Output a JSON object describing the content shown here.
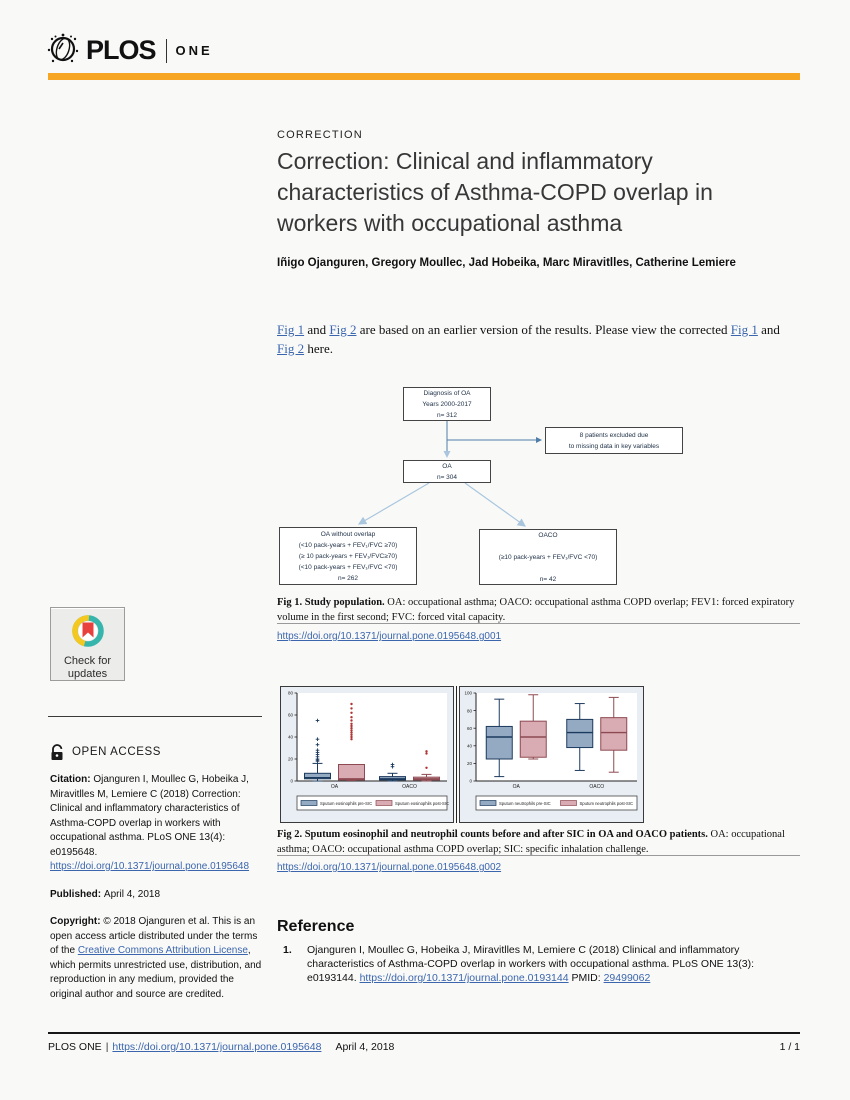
{
  "colors": {
    "accent_orange": "#F6A623",
    "link_blue": "#3b66ad"
  },
  "header": {
    "logo_plos": "PLOS",
    "logo_one": "ONE"
  },
  "article": {
    "kicker": "CORRECTION",
    "title": "Correction: Clinical and inflammatory characteristics of Asthma-COPD overlap in workers with occupational asthma",
    "authors": "Iñigo Ojanguren, Gregory Moullec, Jad Hobeika, Marc Miravitlles, Catherine Lemiere",
    "paragraph": {
      "link1": "Fig 1",
      "s2": " and ",
      "link2": "Fig 2",
      "s4": " are based on an earlier version of the results. Please view the corrected ",
      "link3": "Fig 1",
      "s6": " and ",
      "link4": "Fig 2",
      "s8": " here."
    }
  },
  "fig1": {
    "boxes": {
      "top": "Diagnosis of OA\nYears 2000-2017\nn= 312",
      "excluded": "8 patients excluded due\nto missing data in key variables",
      "oa": "OA\nn= 304",
      "left": "OA without overlap\n(<10 pack-years  + FEV₁/FVC ≥70)\n(≥ 10 pack-years  + FEV₁/FVC≥70)\n(<10 pack-years + FEV₁/FVC <70)\nn= 262",
      "right": "OACO\n\n(≥10 pack-years + FEV₁/FVC <70)\n\nn= 42"
    },
    "caption_bold": "Fig 1. Study population.",
    "caption_rest": " OA: occupational asthma; OACO: occupational asthma COPD overlap; FEV1: forced expiratory volume in the first second; FVC: forced vital capacity.",
    "doi": "https://doi.org/10.1371/journal.pone.0195648.g001"
  },
  "fig2": {
    "caption_bold": "Fig 2. Sputum eosinophil and neutrophil counts before and after SIC in OA and OACO patients.",
    "caption_rest": " OA: occupational asthma; OACO: occupational asthma COPD overlap; SIC: specific inhalation challenge.",
    "doi": "https://doi.org/10.1371/journal.pone.0195648.g002"
  },
  "chart_data": [
    {
      "type": "boxplot",
      "panel": "sputum-eosinophils",
      "categories": [
        "OA",
        "OACO"
      ],
      "ylim": [
        0,
        80
      ],
      "yticks": [
        0,
        20,
        40,
        60,
        80
      ],
      "ylabel": "%",
      "legend_position": "bottom",
      "series": [
        {
          "name": "Sputum eosinophils pre-SIC",
          "color": "#94aac2",
          "border": "#1c3a5e",
          "outlier_style": "plus",
          "boxes": [
            {
              "lo": 0,
              "q1": 2,
              "med": 3,
              "q3": 7,
              "hi": 16,
              "outliers": [
                18,
                19,
                20,
                22,
                24,
                26,
                28,
                33,
                38,
                55
              ]
            },
            {
              "lo": 0,
              "q1": 1,
              "med": 2,
              "q3": 4,
              "hi": 7,
              "outliers": [
                13,
                15
              ]
            }
          ]
        },
        {
          "name": "Sputum eosinophils post-SIC",
          "color": "#d9abb2",
          "border": "#8e4a52",
          "outlier_style": "dot",
          "boxes": [
            {
              "lo": 0.5,
              "q1": 1,
              "med": 2,
              "q3": 15,
              "hi": 15,
              "outliers": [
                38,
                40,
                42,
                44,
                46,
                48,
                50,
                52,
                55,
                58,
                62,
                66,
                70
              ]
            },
            {
              "lo": 0,
              "q1": 1,
              "med": 2,
              "q3": 3.5,
              "hi": 6,
              "outliers": [
                12,
                25,
                27
              ]
            }
          ]
        }
      ]
    },
    {
      "type": "boxplot",
      "panel": "sputum-neutrophils",
      "categories": [
        "OA",
        "OACO"
      ],
      "ylim": [
        0,
        100
      ],
      "yticks": [
        0,
        20,
        40,
        60,
        80,
        100
      ],
      "ylabel": "%",
      "legend_position": "bottom",
      "series": [
        {
          "name": "Sputum neutrophils pre-SIC",
          "color": "#94aac2",
          "border": "#1c3a5e",
          "outlier_style": "plus",
          "boxes": [
            {
              "lo": 5,
              "q1": 25,
              "med": 50,
              "q3": 62,
              "hi": 93,
              "outliers": []
            },
            {
              "lo": 12,
              "q1": 38,
              "med": 55,
              "q3": 70,
              "hi": 88,
              "outliers": []
            }
          ]
        },
        {
          "name": "Sputum neutrophils post-SIC",
          "color": "#d9abb2",
          "border": "#8e4a52",
          "outlier_style": "dot",
          "boxes": [
            {
              "lo": 25,
              "q1": 27,
              "med": 50,
              "q3": 68,
              "hi": 98,
              "outliers": []
            },
            {
              "lo": 10,
              "q1": 35,
              "med": 55,
              "q3": 72,
              "hi": 95,
              "outliers": []
            }
          ]
        }
      ]
    }
  ],
  "reference": {
    "heading": "Reference",
    "item": {
      "num": "1.",
      "text": "Ojanguren I, Moullec G, Hobeika J, Miravitlles M, Lemiere C (2018) Clinical and inflammatory characteristics of Asthma-COPD overlap in workers with occupational asthma. PLoS ONE  13(3): e0193144. ",
      "doi_link": "https://doi.org/10.1371/journal.pone.0193144",
      "pmid_label": " PMID: ",
      "pmid_link": "29499062"
    }
  },
  "sidebar": {
    "check_updates_line1": "Check for",
    "check_updates_line2": "updates",
    "open_access": "OPEN ACCESS",
    "citation_label": "Citation: ",
    "citation_text": "Ojanguren I, Moullec G, Hobeika J, Miravitlles M, Lemiere C (2018) Correction: Clinical and inflammatory characteristics of Asthma-COPD overlap in workers with occupational asthma. PLoS ONE 13(4): e0195648. ",
    "citation_link": "https://doi.org/10.1371/journal.pone.0195648",
    "published_label": "Published: ",
    "published_date": "April 4, 2018",
    "copyright_label": "Copyright: ",
    "copyright_pre": "© 2018 Ojanguren et al. This is an open access article distributed under the terms of the ",
    "copyright_link": "Creative Commons Attribution License",
    "copyright_post": ", which permits unrestricted use, distribution, and reproduction in any medium, provided the original author and source are credited."
  },
  "footer": {
    "journal": "PLOS ONE",
    "sep": "|",
    "doi": "https://doi.org/10.1371/journal.pone.0195648",
    "date": "April 4, 2018",
    "page": "1 / 1"
  }
}
